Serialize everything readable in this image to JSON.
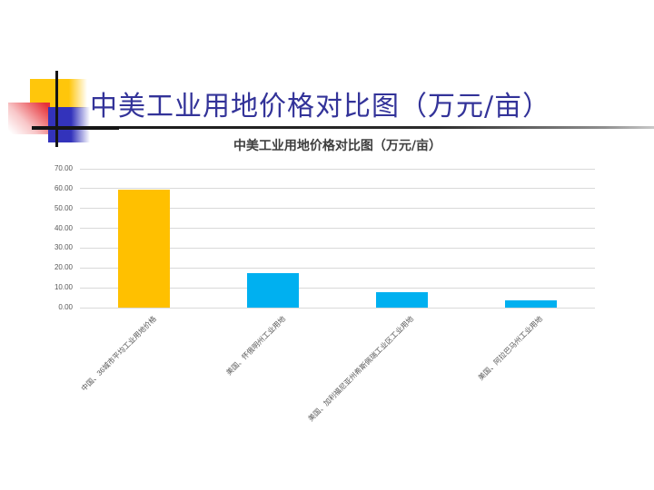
{
  "slide": {
    "title": "中美工业用地价格对比图（万元/亩）",
    "title_color": "#333399"
  },
  "chart_data": {
    "type": "bar",
    "title": "中美工业用地价格对比图（万元/亩）",
    "categories": [
      "中国、36城市平均工业用地价格",
      "美国、怀俄明州工业用地",
      "美国、加利福尼亚州希斯佩瑞工业区工业用地",
      "美国、阿拉巴马州工业用地"
    ],
    "values": [
      59.5,
      17.5,
      8.0,
      3.5
    ],
    "bar_colors": [
      "#FFC000",
      "#00B0F0",
      "#00B0F0",
      "#00B0F0"
    ],
    "xlabel": "",
    "ylabel": "",
    "ylim": [
      0,
      70
    ],
    "ytick_step": 10,
    "ytick_labels": [
      "0.00",
      "10.00",
      "20.00",
      "30.00",
      "40.00",
      "50.00",
      "60.00",
      "70.00"
    ],
    "grid": true,
    "legend_position": "none"
  },
  "decoration": {
    "yellow": "#FFC60B",
    "red": "#E63238",
    "blue": "#3333BB",
    "line": "#151515"
  }
}
